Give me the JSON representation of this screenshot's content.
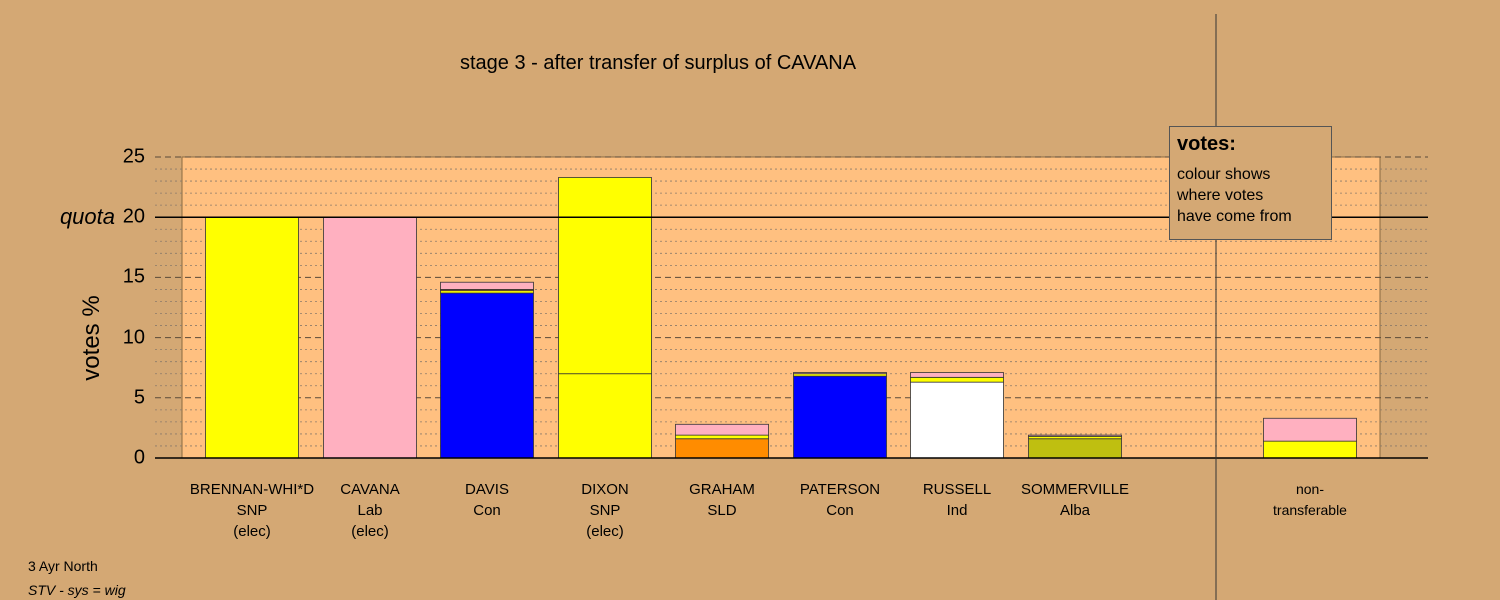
{
  "chart_data": {
    "type": "bar",
    "stacked": true,
    "title": "stage 3 - after transfer of surplus of CAVANA",
    "ylabel": "votes %",
    "ylim": [
      0,
      25
    ],
    "yticks": [
      0,
      5,
      10,
      15,
      20,
      25
    ],
    "quota": 20,
    "quota_label": "quota",
    "grid": true,
    "categories": [
      {
        "name": "BRENNAN-WHI*D",
        "party": "SNP",
        "status": "(elec)"
      },
      {
        "name": "CAVANA",
        "party": "Lab",
        "status": "(elec)"
      },
      {
        "name": "DAVIS",
        "party": "Con",
        "status": ""
      },
      {
        "name": "DIXON",
        "party": "SNP",
        "status": "(elec)"
      },
      {
        "name": "GRAHAM",
        "party": "SLD",
        "status": ""
      },
      {
        "name": "PATERSON",
        "party": "Con",
        "status": ""
      },
      {
        "name": "RUSSELL",
        "party": "Ind",
        "status": ""
      },
      {
        "name": "SOMMERVILLE",
        "party": "Alba",
        "status": ""
      }
    ],
    "bars": [
      [
        {
          "color": "#FFFF00",
          "value": 20.0
        }
      ],
      [
        {
          "color": "#FFB0C0",
          "value": 20.0
        }
      ],
      [
        {
          "color": "#0000FF",
          "value": 13.7
        },
        {
          "color": "#FFFF00",
          "value": 0.2
        },
        {
          "color": "#FF8C00",
          "value": 0.1
        },
        {
          "color": "#FFB0C0",
          "value": 0.6
        }
      ],
      [
        {
          "color": "#FFFF00",
          "value": 7.0
        },
        {
          "color": "#FFFF00",
          "value": 16.3
        }
      ],
      [
        {
          "color": "#FF8C00",
          "value": 1.6
        },
        {
          "color": "#FFFF00",
          "value": 0.3
        },
        {
          "color": "#FFB0C0",
          "value": 0.9
        }
      ],
      [
        {
          "color": "#0000FF",
          "value": 6.8
        },
        {
          "color": "#FFFF00",
          "value": 0.2
        },
        {
          "color": "#FFB0C0",
          "value": 0.1
        }
      ],
      [
        {
          "color": "#FFFFFF",
          "value": 6.3
        },
        {
          "color": "#FFFF00",
          "value": 0.4
        },
        {
          "color": "#FFB0C0",
          "value": 0.4
        }
      ],
      [
        {
          "color": "#BFBF10",
          "value": 1.6
        },
        {
          "color": "#FFFF00",
          "value": 0.2
        },
        {
          "color": "#FFB0C0",
          "value": 0.1
        }
      ]
    ],
    "nontransferable": {
      "label_lines": [
        "non-",
        "transferable"
      ],
      "segments": [
        {
          "color": "#FFFF00",
          "value": 1.4
        },
        {
          "color": "#FFB0C0",
          "value": 1.9
        }
      ]
    },
    "legend": {
      "title": "votes:",
      "lines": [
        "colour shows",
        "where votes",
        "have come from"
      ],
      "position": "top-right"
    }
  },
  "footer": {
    "line1": "3 Ayr North",
    "line2": "STV - sys = wig"
  }
}
